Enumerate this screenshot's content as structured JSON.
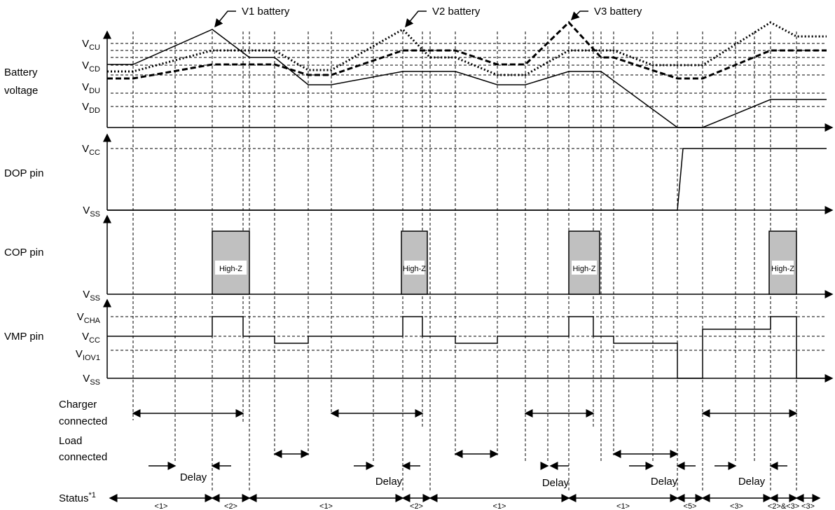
{
  "callouts": [
    "V1 battery",
    "V2 battery",
    "V3 battery"
  ],
  "battery": {
    "label": [
      "Battery",
      "voltage"
    ],
    "levels": [
      {
        "base": "V",
        "sub": "CU"
      },
      {
        "base": "V",
        "sub": "CD"
      },
      {
        "base": "V",
        "sub": "DU"
      },
      {
        "base": "V",
        "sub": "DD"
      }
    ]
  },
  "dop": {
    "label": "DOP pin",
    "levels": [
      {
        "base": "V",
        "sub": "CC"
      },
      {
        "base": "V",
        "sub": "SS"
      }
    ]
  },
  "cop": {
    "label": "COP pin",
    "levels": [
      {
        "base": "V",
        "sub": "SS"
      }
    ],
    "states": [
      "High-Z",
      "High-Z",
      "High-Z",
      "High-Z"
    ]
  },
  "vmp": {
    "label": "VMP pin",
    "levels": [
      {
        "base": "V",
        "sub": "CHA"
      },
      {
        "base": "V",
        "sub": "CC"
      },
      {
        "base": "V",
        "sub": "IOV1"
      },
      {
        "base": "V",
        "sub": "SS"
      }
    ]
  },
  "charger": [
    "Charger",
    "connected"
  ],
  "load": [
    "Load",
    "connected"
  ],
  "delays": [
    "Delay",
    "Delay",
    "Delay",
    "Delay",
    "Delay"
  ],
  "status": {
    "base": "Status",
    "sup": "*1",
    "labels": [
      "<1>",
      "<2>",
      "<1>",
      "<2>",
      "<1>",
      "<1>",
      "<5>",
      "<3>",
      "<2>&<3>",
      "<3>"
    ]
  }
}
